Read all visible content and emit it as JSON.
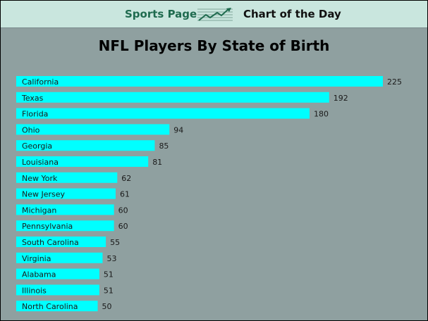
{
  "header": {
    "brand": "Sports Page",
    "tagline": "Chart of the Day",
    "logo_icon": "trend-chart-icon"
  },
  "colors": {
    "background": "#8fa0a0",
    "banner": "#c9e6de",
    "bar": "#00ffff",
    "brand_text": "#1f6b4f"
  },
  "chart_data": {
    "type": "bar",
    "orientation": "horizontal",
    "title": "NFL Players By State of Birth",
    "xlabel": "",
    "ylabel": "",
    "grid": false,
    "legend": "none",
    "xlim": [
      0,
      245
    ],
    "categories": [
      "California",
      "Texas",
      "Florida",
      "Ohio",
      "Georgia",
      "Louisiana",
      "New York",
      "New Jersey",
      "Michigan",
      "Pennsylvania",
      "South Carolina",
      "Virginia",
      "Alabama",
      "Illinois",
      "North Carolina"
    ],
    "values": [
      225,
      192,
      180,
      94,
      85,
      81,
      62,
      61,
      60,
      60,
      55,
      53,
      51,
      51,
      50
    ]
  }
}
